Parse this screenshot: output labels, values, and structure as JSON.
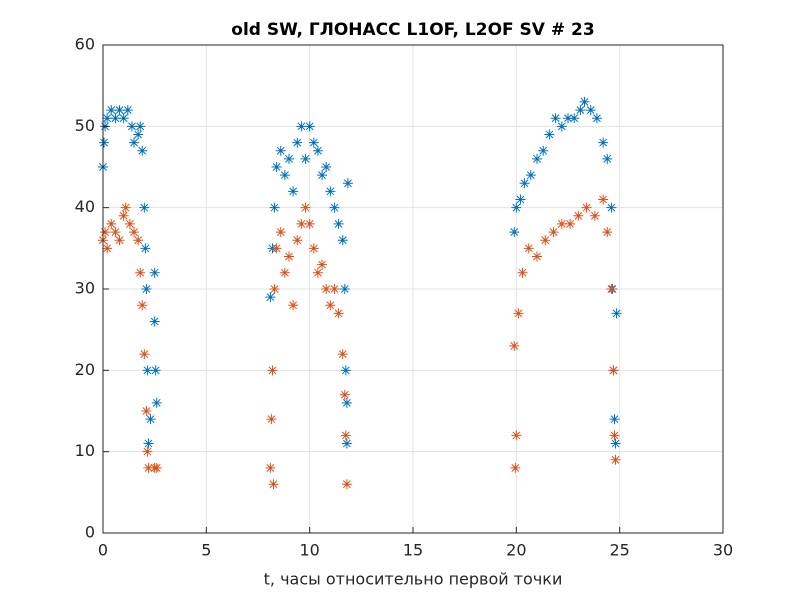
{
  "chart_data": {
    "type": "scatter",
    "title": "old SW, ГЛОНАСС L1OF, L2OF SV # 23",
    "x_label": "t, часы относительно первой точки",
    "xlim": [
      0,
      30
    ],
    "xticks": [
      0,
      5,
      10,
      15,
      20,
      25,
      30
    ],
    "ylim": [
      0,
      60
    ],
    "yticks": [
      0,
      10,
      20,
      30,
      40,
      50,
      60
    ],
    "grid": true,
    "marker": "*",
    "series": [
      {
        "color": "#0072bd",
        "x": [
          0.0,
          0.05,
          0.1,
          0.2,
          0.4,
          0.6,
          0.8,
          1.0,
          1.2,
          1.4,
          1.5,
          1.7,
          1.8,
          1.9,
          2.0,
          2.05,
          2.1,
          2.15,
          2.2,
          2.3,
          2.5,
          2.5,
          2.55,
          2.6,
          8.1,
          8.2,
          8.3,
          8.4,
          8.6,
          8.8,
          9.0,
          9.2,
          9.4,
          9.6,
          9.8,
          10.0,
          10.2,
          10.4,
          10.6,
          10.8,
          11.0,
          11.2,
          11.4,
          11.6,
          11.7,
          11.75,
          11.8,
          11.8,
          11.85,
          19.9,
          20.0,
          20.2,
          20.4,
          20.7,
          21.0,
          21.3,
          21.6,
          21.9,
          22.2,
          22.5,
          22.8,
          23.1,
          23.3,
          23.6,
          23.9,
          24.2,
          24.4,
          24.6,
          24.65,
          24.7,
          24.75,
          24.8,
          24.85
        ],
        "y": [
          45,
          48,
          50,
          51,
          52,
          51,
          52,
          51,
          52,
          50,
          48,
          49,
          50,
          47,
          40,
          35,
          30,
          20,
          11,
          14,
          32,
          26,
          20,
          16,
          29,
          35,
          40,
          45,
          47,
          44,
          46,
          42,
          48,
          50,
          46,
          50,
          48,
          47,
          44,
          45,
          42,
          40,
          38,
          36,
          30,
          20,
          16,
          11,
          43,
          37,
          40,
          41,
          43,
          44,
          46,
          47,
          49,
          51,
          50,
          51,
          51,
          52,
          53,
          52,
          51,
          48,
          46,
          40,
          30,
          20,
          14,
          11,
          27
        ]
      },
      {
        "color": "#d95319",
        "x": [
          0.0,
          0.1,
          0.2,
          0.4,
          0.6,
          0.8,
          1.0,
          1.1,
          1.3,
          1.5,
          1.7,
          1.8,
          1.9,
          2.0,
          2.1,
          2.15,
          2.2,
          2.5,
          2.6,
          8.1,
          8.15,
          8.2,
          8.25,
          8.3,
          8.4,
          8.6,
          8.8,
          9.0,
          9.2,
          9.4,
          9.6,
          9.8,
          10.0,
          10.2,
          10.4,
          10.6,
          10.8,
          11.0,
          11.2,
          11.4,
          11.6,
          11.7,
          11.75,
          11.8,
          19.9,
          19.95,
          20.0,
          20.1,
          20.3,
          20.6,
          21.0,
          21.4,
          21.8,
          22.2,
          22.6,
          23.0,
          23.4,
          23.8,
          24.2,
          24.4,
          24.6,
          24.7,
          24.75,
          24.8
        ],
        "y": [
          36,
          37,
          35,
          38,
          37,
          36,
          39,
          40,
          38,
          37,
          36,
          32,
          28,
          22,
          15,
          10,
          8,
          8,
          8,
          8,
          14,
          20,
          6,
          30,
          35,
          37,
          32,
          34,
          28,
          36,
          38,
          40,
          38,
          35,
          32,
          33,
          30,
          28,
          30,
          27,
          22,
          17,
          12,
          6,
          23,
          8,
          12,
          27,
          32,
          35,
          34,
          36,
          37,
          38,
          38,
          39,
          40,
          39,
          41,
          37,
          30,
          20,
          12,
          9
        ]
      }
    ]
  }
}
